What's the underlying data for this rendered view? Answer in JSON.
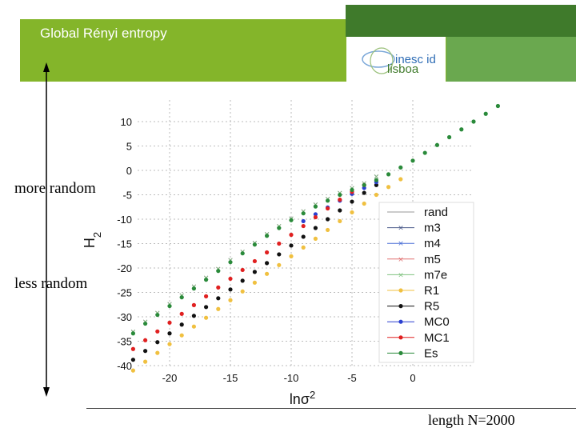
{
  "slide": {
    "title": "Global Rényi entropy",
    "logo_top": "inesc id",
    "logo_bottom": "lisboa",
    "more_random": "more random",
    "less_random": "less random",
    "footer_note": "length N=2000"
  },
  "chart_data": {
    "type": "scatter",
    "xlabel": "lnσ2",
    "ylabel": "H2",
    "xlim": [
      -24,
      10
    ],
    "ylim": [
      -41,
      14
    ],
    "xticks": [
      -20,
      -15,
      -10,
      -5,
      0
    ],
    "yticks": [
      10,
      5,
      0,
      -5,
      -10,
      -15,
      -20,
      -25,
      -30,
      -35,
      -40
    ],
    "grid": true,
    "legend_position": "right",
    "series": [
      {
        "name": "rand",
        "color": "#999999",
        "marker": "dot",
        "points": []
      },
      {
        "name": "m3",
        "color": "#4a5a8a",
        "marker": "x",
        "points": [
          [
            -23,
            -33
          ],
          [
            -22,
            -31
          ],
          [
            -21,
            -29.2
          ],
          [
            -20,
            -27.4
          ],
          [
            -19,
            -25.6
          ],
          [
            -18,
            -23.8
          ],
          [
            -17,
            -22
          ],
          [
            -16,
            -20.2
          ],
          [
            -15,
            -18.4
          ],
          [
            -14,
            -16.6
          ],
          [
            -13,
            -14.8
          ],
          [
            -12,
            -13
          ],
          [
            -11,
            -11.4
          ],
          [
            -10,
            -9.8
          ],
          [
            -9,
            -8.4
          ],
          [
            -8,
            -7
          ],
          [
            -7,
            -5.8
          ],
          [
            -6,
            -4.6
          ],
          [
            -5,
            -3.6
          ],
          [
            -4,
            -2.6
          ],
          [
            -3,
            -1.2
          ]
        ]
      },
      {
        "name": "m4",
        "color": "#4a6fd6",
        "marker": "x",
        "points": [
          [
            -23,
            -33
          ],
          [
            -22,
            -31
          ],
          [
            -21,
            -29.2
          ],
          [
            -20,
            -27.4
          ],
          [
            -19,
            -25.6
          ],
          [
            -18,
            -23.8
          ],
          [
            -17,
            -22
          ],
          [
            -16,
            -20.2
          ],
          [
            -15,
            -18.4
          ],
          [
            -14,
            -16.6
          ],
          [
            -13,
            -14.8
          ],
          [
            -12,
            -13
          ],
          [
            -11,
            -11.4
          ],
          [
            -10,
            -9.8
          ],
          [
            -9,
            -8.4
          ],
          [
            -8,
            -7
          ],
          [
            -7,
            -5.8
          ],
          [
            -6,
            -4.6
          ],
          [
            -5,
            -3.6
          ],
          [
            -4,
            -2.6
          ],
          [
            -3,
            -1.2
          ]
        ]
      },
      {
        "name": "m5",
        "color": "#e07070",
        "marker": "x",
        "points": [
          [
            -23,
            -33
          ],
          [
            -22,
            -31
          ],
          [
            -21,
            -29.2
          ],
          [
            -20,
            -27.4
          ],
          [
            -19,
            -25.6
          ],
          [
            -18,
            -23.8
          ],
          [
            -17,
            -22
          ],
          [
            -16,
            -20.2
          ],
          [
            -15,
            -18.4
          ],
          [
            -14,
            -16.6
          ],
          [
            -13,
            -14.8
          ],
          [
            -12,
            -13
          ],
          [
            -11,
            -11.4
          ],
          [
            -10,
            -9.8
          ],
          [
            -9,
            -8.4
          ],
          [
            -8,
            -7
          ],
          [
            -7,
            -5.8
          ],
          [
            -6,
            -4.6
          ],
          [
            -5,
            -3.6
          ],
          [
            -4,
            -2.6
          ],
          [
            -3,
            -1.2
          ]
        ]
      },
      {
        "name": "m7e",
        "color": "#7fc27f",
        "marker": "x",
        "points": [
          [
            -23,
            -33
          ],
          [
            -22,
            -31
          ],
          [
            -21,
            -29.2
          ],
          [
            -20,
            -27.4
          ],
          [
            -19,
            -25.6
          ],
          [
            -18,
            -23.8
          ],
          [
            -17,
            -22
          ],
          [
            -16,
            -20.2
          ],
          [
            -15,
            -18.4
          ],
          [
            -14,
            -16.6
          ],
          [
            -13,
            -14.8
          ],
          [
            -12,
            -13
          ],
          [
            -11,
            -11.4
          ],
          [
            -10,
            -9.8
          ],
          [
            -9,
            -8.4
          ],
          [
            -8,
            -7
          ],
          [
            -7,
            -5.8
          ],
          [
            -6,
            -4.6
          ],
          [
            -5,
            -3.6
          ],
          [
            -4,
            -2.6
          ],
          [
            -3,
            -1.2
          ]
        ]
      },
      {
        "name": "R1",
        "color": "#f0c040",
        "marker": "dot",
        "points": [
          [
            -23,
            -41
          ],
          [
            -22,
            -39.2
          ],
          [
            -21,
            -37.4
          ],
          [
            -20,
            -35.6
          ],
          [
            -19,
            -33.8
          ],
          [
            -18,
            -32
          ],
          [
            -17,
            -30.2
          ],
          [
            -16,
            -28.4
          ],
          [
            -15,
            -26.6
          ],
          [
            -14,
            -24.8
          ],
          [
            -13,
            -23
          ],
          [
            -12,
            -21.2
          ],
          [
            -11,
            -19.4
          ],
          [
            -10,
            -17.6
          ],
          [
            -9,
            -15.8
          ],
          [
            -8,
            -14
          ],
          [
            -7,
            -12.2
          ],
          [
            -6,
            -10.4
          ],
          [
            -5,
            -8.6
          ],
          [
            -4,
            -6.8
          ],
          [
            -3,
            -5
          ],
          [
            -2,
            -3.4
          ],
          [
            -1,
            -1.8
          ]
        ]
      },
      {
        "name": "R5",
        "color": "#111111",
        "marker": "dot",
        "points": [
          [
            -23,
            -38.8
          ],
          [
            -22,
            -37
          ],
          [
            -21,
            -35.2
          ],
          [
            -20,
            -33.4
          ],
          [
            -19,
            -31.6
          ],
          [
            -18,
            -29.8
          ],
          [
            -17,
            -28
          ],
          [
            -16,
            -26.2
          ],
          [
            -15,
            -24.4
          ],
          [
            -14,
            -22.6
          ],
          [
            -13,
            -20.8
          ],
          [
            -12,
            -19
          ],
          [
            -11,
            -17.2
          ],
          [
            -10,
            -15.4
          ],
          [
            -9,
            -13.6
          ],
          [
            -8,
            -11.8
          ],
          [
            -7,
            -10
          ],
          [
            -6,
            -8.2
          ],
          [
            -5,
            -6.4
          ],
          [
            -4,
            -4.6
          ],
          [
            -3,
            -3
          ]
        ]
      },
      {
        "name": "MC0",
        "color": "#2a3fd0",
        "marker": "dot",
        "points": [
          [
            -9,
            -10.4
          ],
          [
            -8,
            -9
          ],
          [
            -7,
            -7.6
          ],
          [
            -6,
            -6.2
          ],
          [
            -5,
            -4.8
          ],
          [
            -4,
            -3.6
          ],
          [
            -3,
            -2.4
          ]
        ]
      },
      {
        "name": "MC1",
        "color": "#e02020",
        "marker": "dot",
        "points": [
          [
            -23,
            -36.6
          ],
          [
            -22,
            -34.8
          ],
          [
            -21,
            -33
          ],
          [
            -20,
            -31.2
          ],
          [
            -19,
            -29.4
          ],
          [
            -18,
            -27.6
          ],
          [
            -17,
            -25.8
          ],
          [
            -16,
            -24
          ],
          [
            -15,
            -22.2
          ],
          [
            -14,
            -20.4
          ],
          [
            -13,
            -18.6
          ],
          [
            -12,
            -16.8
          ],
          [
            -11,
            -15
          ],
          [
            -10,
            -13.2
          ],
          [
            -9,
            -11.4
          ],
          [
            -8,
            -9.6
          ],
          [
            -7,
            -7.8
          ],
          [
            -6,
            -6
          ],
          [
            -5,
            -4.4
          ],
          [
            -4,
            -3
          ]
        ]
      },
      {
        "name": "Es",
        "color": "#2a8a3a",
        "marker": "dot",
        "points": [
          [
            -23,
            -33.4
          ],
          [
            -22,
            -31.4
          ],
          [
            -21,
            -29.6
          ],
          [
            -20,
            -27.8
          ],
          [
            -19,
            -26
          ],
          [
            -18,
            -24.2
          ],
          [
            -17,
            -22.4
          ],
          [
            -16,
            -20.6
          ],
          [
            -15,
            -18.8
          ],
          [
            -14,
            -17
          ],
          [
            -13,
            -15.2
          ],
          [
            -12,
            -13.4
          ],
          [
            -11,
            -11.8
          ],
          [
            -10,
            -10.2
          ],
          [
            -9,
            -8.8
          ],
          [
            -8,
            -7.4
          ],
          [
            -7,
            -6.2
          ],
          [
            -6,
            -5
          ],
          [
            -5,
            -4
          ],
          [
            -4,
            -3
          ],
          [
            -3,
            -2
          ],
          [
            -2,
            -0.8
          ],
          [
            -1,
            0.6
          ],
          [
            0,
            2
          ],
          [
            1,
            3.6
          ],
          [
            2,
            5.2
          ],
          [
            3,
            6.8
          ],
          [
            4,
            8.4
          ],
          [
            5,
            10
          ],
          [
            6,
            11.6
          ],
          [
            7,
            13.2
          ]
        ]
      }
    ]
  }
}
